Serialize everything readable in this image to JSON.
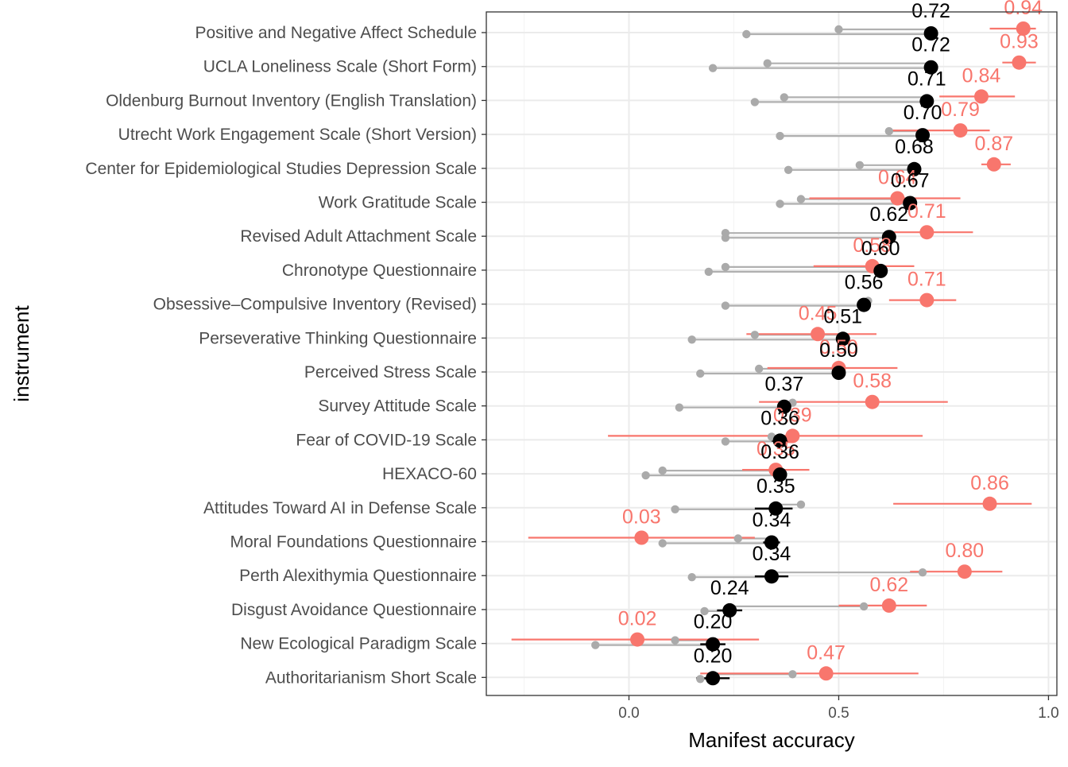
{
  "chart_data": {
    "type": "scatter",
    "xlabel": "Manifest accuracy",
    "ylabel": "instrument",
    "xlim": [
      -0.34,
      1.02
    ],
    "x_ticks": [
      "0.0",
      "0.5",
      "1.0"
    ],
    "grid": true,
    "colors": {
      "black_points": "#000000",
      "red_points": "#F8766D",
      "grey_points": "#AAAAAA",
      "grey_segments": "#B0B0B0",
      "gridline": "#EBEBEB",
      "panel_border": "#333333"
    },
    "categories": [
      "Positive and Negative Affect Schedule",
      "UCLA Loneliness Scale (Short Form)",
      "Oldenburg Burnout Inventory (English Translation)",
      "Utrecht Work Engagement Scale (Short Version)",
      "Center for Epidemiological Studies Depression Scale",
      "Work Gratitude Scale",
      "Revised Adult Attachment Scale",
      "Chronotype Questionnaire",
      "Obsessive–Compulsive Inventory (Revised)",
      "Perseverative Thinking Questionnaire",
      "Perceived Stress Scale",
      "Survey Attitude Scale",
      "Fear of COVID-19 Scale",
      "HEXACO-60",
      "Attitudes Toward AI in Defense Scale",
      "Moral Foundations Questionnaire",
      "Perth Alexithymia Questionnaire",
      "Disgust Avoidance Questionnaire",
      "New Ecological Paradigm Scale",
      "Authoritarianism Short Scale"
    ],
    "series": [
      {
        "values": [
          0.72,
          0.72,
          0.71,
          0.7,
          0.68,
          0.67,
          0.62,
          0.6,
          0.56,
          0.51,
          0.5,
          0.37,
          0.36,
          0.36,
          0.35,
          0.34,
          0.34,
          0.24,
          0.2,
          0.2
        ],
        "labels": [
          "0.72",
          "0.72",
          "0.71",
          "0.70",
          "0.68",
          "0.67",
          "0.62",
          "0.60",
          "0.56",
          "0.51",
          "0.50",
          "0.37",
          "0.36",
          "0.36",
          "0.35",
          "0.34",
          "0.34",
          "0.24",
          "0.20",
          "0.20"
        ],
        "ci_low": [
          null,
          null,
          null,
          null,
          null,
          null,
          null,
          null,
          null,
          null,
          null,
          null,
          0.34,
          null,
          0.3,
          0.32,
          0.3,
          0.21,
          0.17,
          0.16
        ],
        "ci_high": [
          null,
          null,
          null,
          null,
          null,
          null,
          null,
          null,
          null,
          null,
          null,
          null,
          0.38,
          null,
          0.39,
          0.36,
          0.38,
          0.27,
          0.23,
          0.24
        ]
      },
      {
        "values": [
          0.94,
          0.93,
          0.84,
          0.79,
          0.87,
          0.64,
          0.71,
          0.58,
          0.71,
          0.45,
          0.5,
          0.58,
          0.39,
          0.35,
          0.86,
          0.03,
          0.8,
          0.62,
          0.02,
          0.47
        ],
        "labels": [
          "0.94",
          "0.93",
          "0.84",
          "0.79",
          "0.87",
          "0.64",
          "0.71",
          "0.58",
          "0.71",
          "0.45",
          "0.50",
          "0.58",
          "0.39",
          "0.35",
          "0.86",
          "0.03",
          "0.80",
          "0.62",
          "0.02",
          "0.47"
        ],
        "ci_low": [
          0.86,
          0.89,
          0.74,
          0.62,
          0.84,
          0.43,
          0.62,
          0.44,
          0.62,
          0.28,
          0.33,
          0.31,
          -0.05,
          0.27,
          0.63,
          -0.24,
          0.67,
          0.5,
          -0.28,
          0.17
        ],
        "ci_high": [
          0.97,
          0.97,
          0.92,
          0.86,
          0.91,
          0.79,
          0.82,
          0.68,
          0.78,
          0.59,
          0.64,
          0.76,
          0.7,
          0.43,
          0.96,
          0.3,
          0.89,
          0.71,
          0.31,
          0.69
        ]
      },
      {
        "values": [
          [
            0.28,
            0.5
          ],
          [
            0.2,
            0.33
          ],
          [
            0.3,
            0.37
          ],
          [
            0.36,
            0.62
          ],
          [
            0.38,
            0.55
          ],
          [
            0.36,
            0.41
          ],
          [
            0.23,
            0.23
          ],
          [
            0.19,
            0.23
          ],
          [
            0.23,
            0.57
          ],
          [
            0.15,
            0.3
          ],
          [
            0.17,
            0.31
          ],
          [
            0.12,
            0.39
          ],
          [
            0.23,
            0.34
          ],
          [
            0.04,
            0.08
          ],
          [
            0.11,
            0.41
          ],
          [
            0.08,
            0.26
          ],
          [
            0.15,
            0.7
          ],
          [
            0.18,
            0.56
          ],
          [
            -0.08,
            0.11
          ],
          [
            0.17,
            0.39
          ]
        ]
      }
    ]
  }
}
